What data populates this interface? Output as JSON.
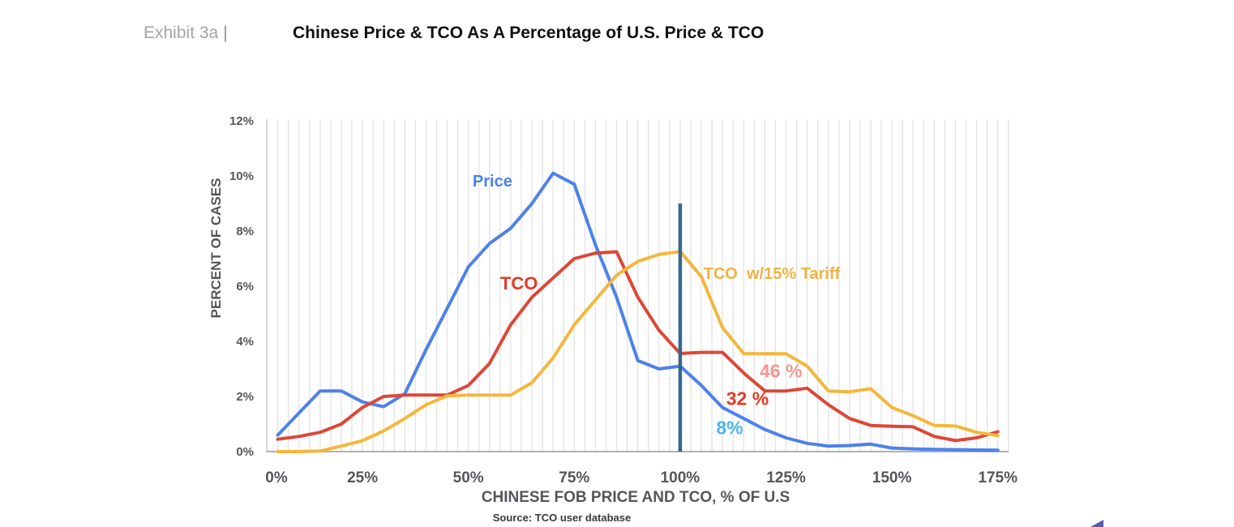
{
  "header": {
    "exhibit_label": "Exhibit 3a",
    "separator": "|",
    "title": "Chinese Price & TCO As A Percentage of U.S. Price & TCO"
  },
  "chart_data": {
    "type": "line",
    "xlabel": "CHINESE FOB PRICE AND TCO, % OF U.S",
    "ylabel": "PERCENT OF CASES",
    "source": "Source: TCO user database",
    "ylim": [
      0,
      12
    ],
    "xlim": [
      0,
      175
    ],
    "grid": "vertical-minor-every-2.5",
    "y_ticks": [
      {
        "value": 0,
        "label": "0%"
      },
      {
        "value": 2,
        "label": "2%"
      },
      {
        "value": 4,
        "label": "4%"
      },
      {
        "value": 6,
        "label": "6%"
      },
      {
        "value": 8,
        "label": "8%"
      },
      {
        "value": 10,
        "label": "10%"
      },
      {
        "value": 12,
        "label": "12%"
      }
    ],
    "x_ticks": [
      {
        "value": 0,
        "label": "0%"
      },
      {
        "value": 25,
        "label": "25%"
      },
      {
        "value": 50,
        "label": "50%"
      },
      {
        "value": 75,
        "label": "75%"
      },
      {
        "value": 100,
        "label": "100%"
      },
      {
        "value": 125,
        "label": "125%"
      },
      {
        "value": 150,
        "label": "150%"
      },
      {
        "value": 175,
        "label": "175%"
      }
    ],
    "x": [
      5,
      10,
      15,
      20,
      25,
      30,
      35,
      40,
      45,
      50,
      55,
      60,
      65,
      70,
      75,
      80,
      85,
      90,
      95,
      100,
      105,
      110,
      115,
      120,
      125,
      130,
      135,
      140,
      145,
      150,
      155,
      160,
      165,
      170,
      175
    ],
    "series": [
      {
        "name": "Price",
        "color": "#4e81ea",
        "values": [
          0.6,
          1.4,
          2.2,
          2.2,
          1.8,
          1.63,
          2.1,
          3.7,
          5.2,
          6.7,
          7.55,
          8.1,
          9.0,
          10.1,
          9.7,
          7.5,
          5.6,
          3.3,
          3.0,
          3.1,
          2.4,
          1.6,
          1.2,
          0.8,
          0.5,
          0.3,
          0.2,
          0.22,
          0.27,
          0.13,
          0.1,
          0.08,
          0.07,
          0.06,
          0.05
        ]
      },
      {
        "name": "TCO",
        "color": "#dc4838",
        "values": [
          0.45,
          0.55,
          0.7,
          1.0,
          1.6,
          2.0,
          2.05,
          2.05,
          2.05,
          2.4,
          3.2,
          4.6,
          5.6,
          6.3,
          7.0,
          7.2,
          7.25,
          5.6,
          4.4,
          3.56,
          3.6,
          3.6,
          2.85,
          2.2,
          2.2,
          2.3,
          1.7,
          1.2,
          0.95,
          0.92,
          0.9,
          0.55,
          0.4,
          0.5,
          0.72
        ]
      },
      {
        "name": "TCO w/15% Tariff",
        "color": "#f5b63c",
        "values": [
          0,
          0,
          0.02,
          0.2,
          0.4,
          0.75,
          1.2,
          1.7,
          2.02,
          2.05,
          2.05,
          2.05,
          2.5,
          3.4,
          4.6,
          5.5,
          6.4,
          6.9,
          7.15,
          7.26,
          6.35,
          4.5,
          3.55,
          3.55,
          3.55,
          3.1,
          2.2,
          2.17,
          2.28,
          1.6,
          1.3,
          0.95,
          0.93,
          0.7,
          0.58
        ]
      }
    ],
    "reference_line": {
      "x": 100,
      "y_from": 0,
      "y_to": 9.0,
      "color": "#35688f"
    },
    "annotations": [
      {
        "id": "price-series-label",
        "text": "Price",
        "x": 51,
        "y": 9.8,
        "anchor": "start",
        "color": "#4b80e9",
        "size": 20
      },
      {
        "id": "tco-series-label",
        "text": "TCO",
        "x": 57.5,
        "y": 6.1,
        "anchor": "start",
        "color": "#e23a28",
        "size": 22
      },
      {
        "id": "tariff-series-label",
        "text": "TCO  w/15% Tariff",
        "x": 105.5,
        "y": 6.45,
        "anchor": "start",
        "color": "#f0b340",
        "size": 20
      },
      {
        "id": "value-46pct",
        "text": "46 %",
        "x": 123.8,
        "y": 2.9,
        "anchor": "middle",
        "color": "#f19790",
        "size": 23
      },
      {
        "id": "value-32pct",
        "text": "32 %",
        "x": 115.9,
        "y": 1.9,
        "anchor": "middle",
        "color": "#e73a21",
        "size": 23
      },
      {
        "id": "value-8pct",
        "text": "8%",
        "x": 111.7,
        "y": 0.85,
        "anchor": "middle",
        "color": "#4db4f4",
        "size": 23
      }
    ]
  }
}
